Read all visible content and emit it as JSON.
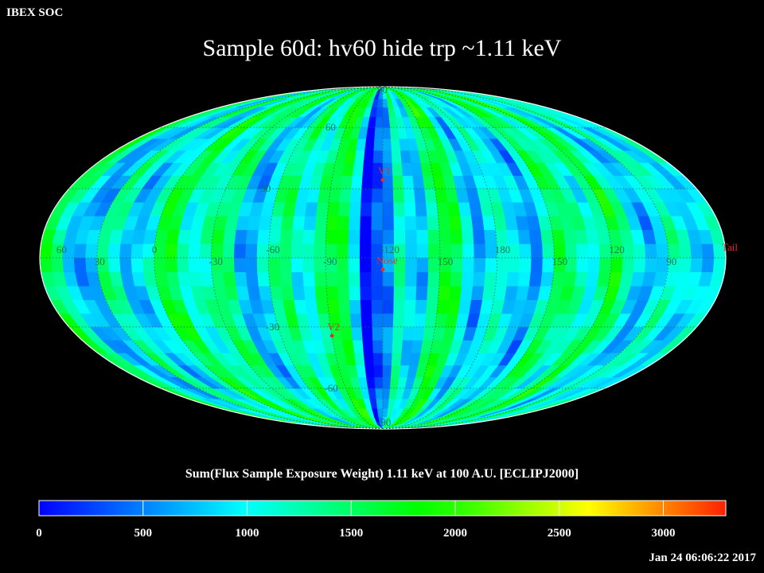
{
  "header": {
    "org": "IBEX SOC",
    "title": "Sample 60d: hv60 hide trp ~1.11 keV"
  },
  "map": {
    "projection": "mollweide",
    "longitude_labels": [
      "60",
      "30",
      "0",
      "-30",
      "-60",
      "-90",
      "-120",
      "150",
      "180",
      "150",
      "120",
      "90"
    ],
    "latitude_labels": [
      "90",
      "60",
      "30",
      "-30",
      "-60",
      "-90"
    ],
    "markers": [
      {
        "label": "V1",
        "lon": -95,
        "lat": 34
      },
      {
        "label": "Nose",
        "lon": -95,
        "lat": -5
      },
      {
        "label": "V2",
        "lon": -60,
        "lat": -34
      },
      {
        "label": "Tail",
        "lon": 85,
        "lat": 0
      }
    ],
    "grid": true
  },
  "colorbar": {
    "label": "Sum(Flux Sample Exposure Weight)  1.11 keV at 100 A.U. [ECLIPJ2000]",
    "min": 0,
    "max": 3300,
    "tick_values": [
      0,
      500,
      1000,
      1500,
      2000,
      2500,
      3000
    ],
    "tick_labels": [
      "0",
      "500",
      "1000",
      "1500",
      "2000",
      "2500",
      "3000"
    ],
    "colors": [
      "#0000ff",
      "#00ffff",
      "#00ff00",
      "#ffff00",
      "#ff0000"
    ]
  },
  "footer": {
    "timestamp": "Jan 24 06:06:22 2017"
  }
}
